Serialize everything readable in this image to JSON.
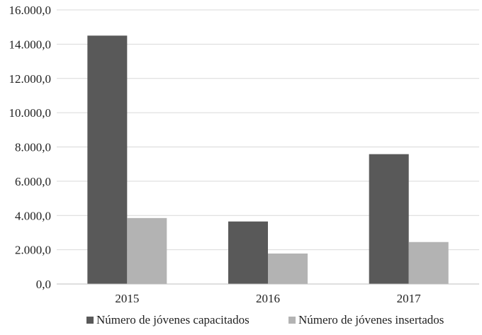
{
  "chart_data": {
    "type": "bar",
    "categories": [
      "2015",
      "2016",
      "2017"
    ],
    "series": [
      {
        "name": "Número de jóvenes capacitados",
        "values": [
          14500,
          3650,
          7580
        ],
        "color": "#595959"
      },
      {
        "name": "Número de jóvenes insertados",
        "values": [
          3850,
          1780,
          2450
        ],
        "color": "#b3b3b3"
      }
    ],
    "ylim": [
      0,
      16000
    ],
    "yticks": [
      0,
      2000,
      4000,
      6000,
      8000,
      10000,
      12000,
      14000,
      16000
    ],
    "ytick_labels": [
      "0,0",
      "2.000,0",
      "4.000,0",
      "6.000,0",
      "8.000,0",
      "10.000,0",
      "12.000,0",
      "14.000,0",
      "16.000,0"
    ],
    "title": "",
    "xlabel": "",
    "ylabel": "",
    "grid": true,
    "legend_position": "bottom"
  }
}
